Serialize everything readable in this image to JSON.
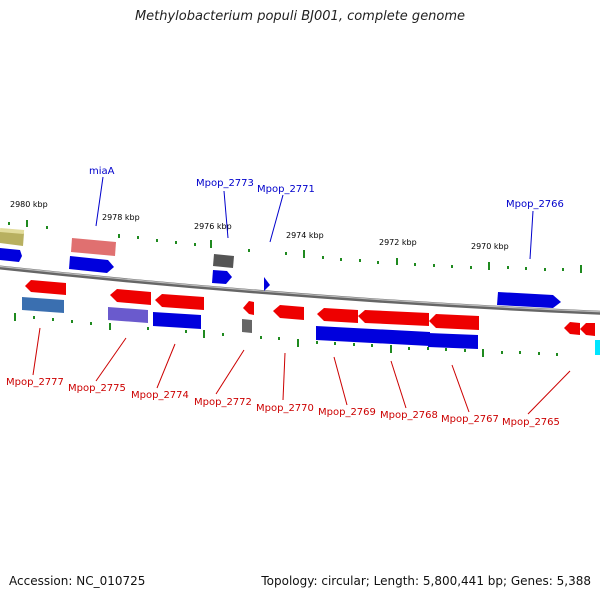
{
  "title": "Methylobacterium populi BJ001, complete genome",
  "accession": "Accession: NC_010725",
  "summary": "Topology: circular; Length: 5,800,441 bp; Genes: 5,388",
  "colors": {
    "forward": "#ff0000",
    "reverse": "#0000ee",
    "backbone": "#888888",
    "tick": "#1f8a1f",
    "label_top": "#0000cc",
    "label_bottom": "#cc0000"
  },
  "kbp_ticks": [
    "2980 kbp",
    "2978 kbp",
    "2976 kbp",
    "2974 kbp",
    "2972 kbp",
    "2970 kbp"
  ],
  "top_labels": [
    "miaA",
    "Mpop_2773",
    "Mpop_2771",
    "Mpop_2766"
  ],
  "bottom_labels": [
    "Mpop_2777",
    "Mpop_2775",
    "Mpop_2774",
    "Mpop_2772",
    "Mpop_2770",
    "Mpop_2769",
    "Mpop_2768",
    "Mpop_2767",
    "Mpop_2765"
  ]
}
